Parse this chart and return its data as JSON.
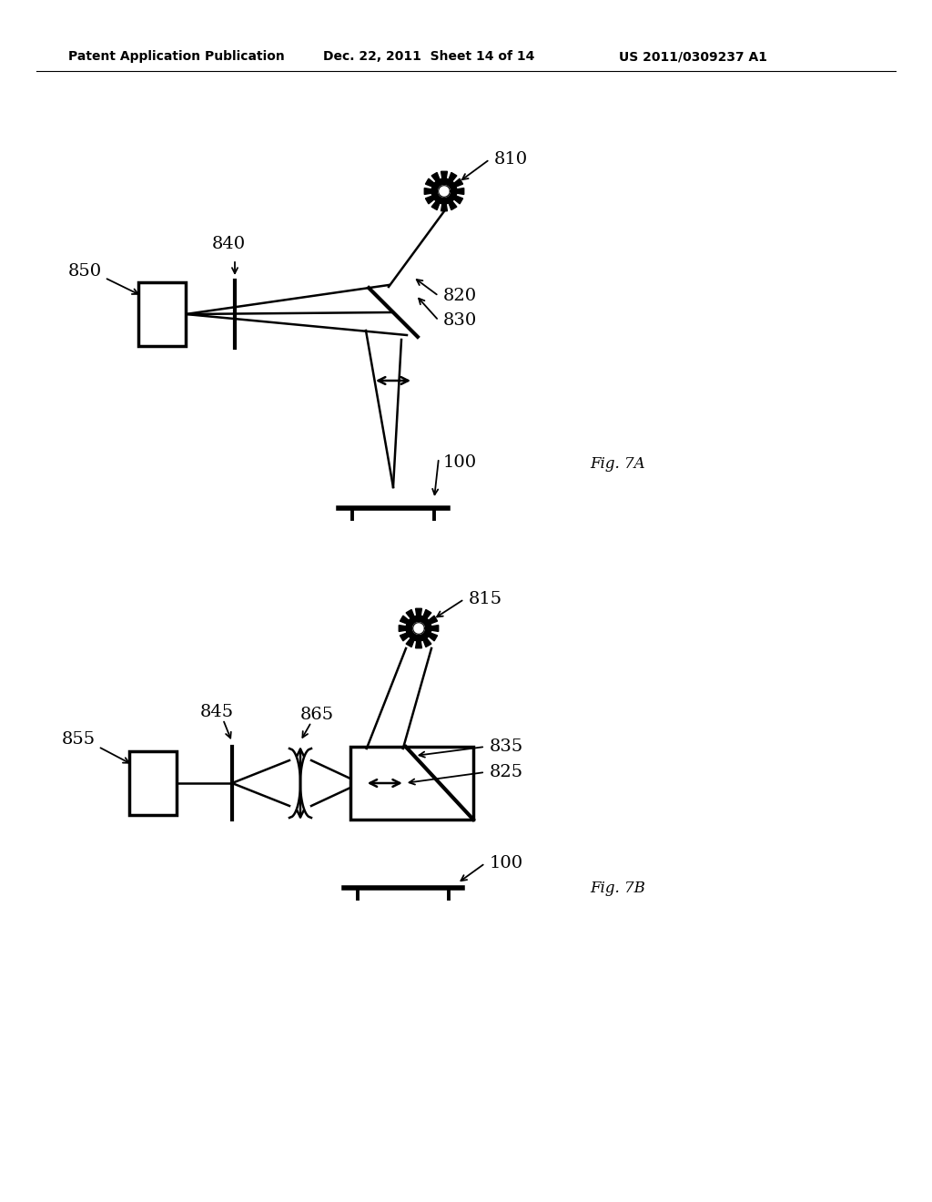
{
  "bg_color": "#ffffff",
  "header_left": "Patent Application Publication",
  "header_mid": "Dec. 22, 2011  Sheet 14 of 14",
  "header_right": "US 2011/0309237 A1",
  "fig7a_label": "Fig. 7A",
  "fig7b_label": "Fig. 7B",
  "lw": 1.8,
  "lw_bold": 2.5,
  "lw_plate": 4.0,
  "font_size_label": 14,
  "font_size_header": 10
}
